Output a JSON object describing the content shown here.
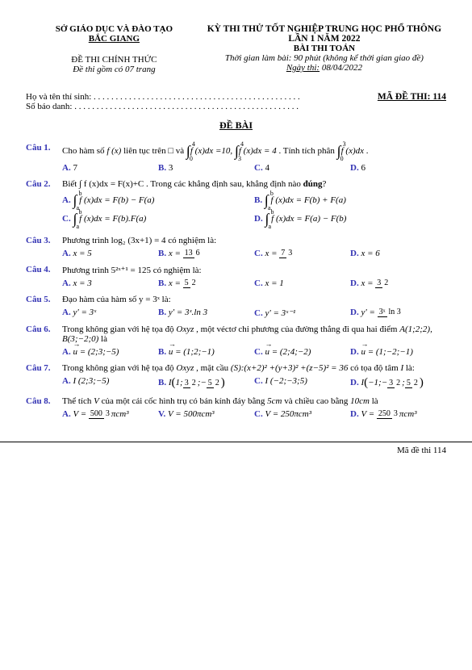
{
  "header": {
    "org": "SỞ GIÁO DỤC VÀ ĐÀO TẠO",
    "province": "BẮC GIANG",
    "official": "ĐỀ THI CHÍNH THỨC",
    "pages": "Đề thi gồm có 07 trang",
    "exam": "KỲ THI THỬ TỐT NGHIỆP TRUNG HỌC PHỔ THÔNG",
    "round": "LẦN 1 NĂM 2022",
    "subject": "BÀI THI TOÁN",
    "timing": "Thời gian làm bài: 90 phút (không kể thời gian giao đề)",
    "date_label": "Ngày thi:",
    "date_value": " 08/04/2022",
    "name": "Họ và tên thí sinh: . . . . . . . . . . . . . . . . . . . . . . . . . . . . . . . . . . . . . . . . . . . . . . .",
    "sbd": "Số báo danh: . . . . . . . . . . . . . . . . . . . . . . . . . . . . . . . . . . . . . . . . . . . . . . . . . . .",
    "code_label": "MÃ ĐỀ THI:",
    "code_value": " 114",
    "de_bai": "ĐỀ BÀI"
  },
  "questions": {
    "q1": {
      "num": "Câu 1.",
      "text_a": "Cho hàm số ",
      "f": "f (x)",
      "text_b": " liên tục trên ",
      "set": "□",
      "text_c": "  và ",
      "eq1": "f (x)dx =10,",
      "eq2": "f (x)dx = 4",
      "text_d": " . Tính tích phân ",
      "eq3": "f (x)dx",
      "opts": {
        "A": "7",
        "B": "3",
        "C": "4",
        "D": "6"
      }
    },
    "q2": {
      "num": "Câu 2.",
      "text": "Biết  ∫ f (x)dx = F(x)+C . Trong các khẳng định sau, khẳng định nào ",
      "bold": "đúng",
      "qm": "?",
      "A": "f (x)dx = F(b) − F(a)",
      "B": "f (x)dx = F(b) + F(a)",
      "C": "f (x)dx = F(b).F(a)",
      "D": "f (x)dx = F(a) − F(b)"
    },
    "q3": {
      "num": "Câu 3.",
      "text": "Phương trình  log₂ (3x+1) = 4  có nghiệm là:",
      "A": "x = 5",
      "B_pre": "x = ",
      "B_num": "13",
      "B_den": "6",
      "C_pre": "x = ",
      "C_num": "7",
      "C_den": "3",
      "D": "x = 6"
    },
    "q4": {
      "num": "Câu 4.",
      "text": "Phương trình  5²ˣ⁺¹ = 125  có nghiệm là:",
      "A": "x = 3",
      "B_pre": "x = ",
      "B_num": "5",
      "B_den": "2",
      "C": "x = 1",
      "D_pre": "x = ",
      "D_num": "3",
      "D_den": "2"
    },
    "q5": {
      "num": "Câu 5.",
      "text": "Đạo hàm của hàm số  y = 3ˣ  là:",
      "A": "y' = 3ˣ",
      "B": "y' = 3ˣ.ln 3",
      "C": "y' = 3ˣ⁻¹",
      "D_pre": "y' = ",
      "D_num": "3ˣ",
      "D_den": "ln 3"
    },
    "q6": {
      "num": "Câu 6.",
      "text1": "Trong không gian với hệ tọa độ ",
      "oxyz": "Oxyz",
      "text2": " , một véctơ chỉ phương của đường thẳng đi qua hai điểm ",
      "pts": "A(1;2;2), B(3;−2;0)",
      "text3": " là",
      "uA": " = (2;3;−5)",
      "uB": " = (1;2;−1)",
      "uC": " = (2;4;−2)",
      "uD": " = (1;−2;−1)"
    },
    "q7": {
      "num": "Câu 7.",
      "text1": "Trong không gian với hệ tọa độ ",
      "oxyz": "Oxyz",
      "text2": " , mặt cầu ",
      "eq": "(S):(x+2)² +(y+3)² +(z−5)² = 36",
      "text3": "  có tọa độ tâm ",
      "I": "I",
      "text4": " là:",
      "A": "I (2;3;−5)",
      "B_pre": "I",
      "B_l": "(",
      "B1": "1;",
      "B2n": "3",
      "B2d": "2",
      "B3": ";−",
      "B4n": "5",
      "B4d": "2",
      "B_r": ")",
      "C": "I (−2;−3;5)",
      "D_pre": "I",
      "D_l": "(",
      "D1": "−1;−",
      "D2n": "3",
      "D2d": "2",
      "D3": ";",
      "D4n": "5",
      "D4d": "2",
      "D_r": ")"
    },
    "q8": {
      "num": "Câu 8.",
      "text1": "Thể tích ",
      "V": "V",
      "text2": " của một cái cốc hình trụ có bán kính đáy bằng ",
      "r": "5cm",
      "text3": " và chiều cao bằng ",
      "h": "10cm",
      "text4": " là",
      "A_pre": "V = ",
      "A_num": "500",
      "A_den": "3",
      "A_suf": "πcm³",
      "B": "V = 500πcm³",
      "C": "V = 250πcm³",
      "D_pre": "V = ",
      "D_num": "250",
      "D_den": "3",
      "D_suf": "πcm³"
    }
  },
  "footer": "Mã đề thi 114"
}
